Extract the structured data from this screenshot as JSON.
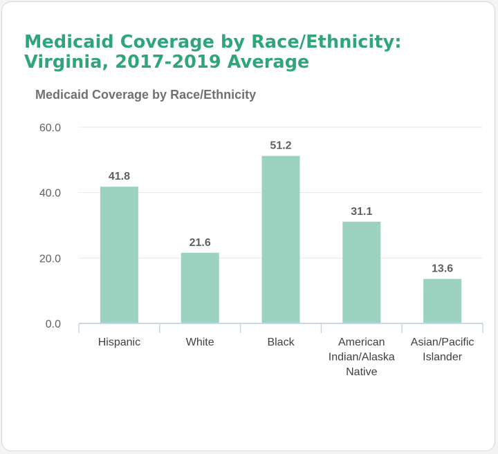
{
  "chart_data": {
    "type": "bar",
    "title": [
      "Medicaid Coverage by Race/Ethnicity:",
      "Virginia, 2017-2019 Average"
    ],
    "subtitle": "Medicaid Coverage by Race/Ethnicity",
    "categories": [
      [
        "Hispanic"
      ],
      [
        "White"
      ],
      [
        "Black"
      ],
      [
        "American",
        "Indian/Alaska",
        "Native"
      ],
      [
        "Asian/Pacific",
        "Islander"
      ]
    ],
    "values": [
      41.8,
      21.6,
      51.2,
      31.1,
      13.6
    ],
    "value_labels": [
      "41.8",
      "21.6",
      "51.2",
      "31.1",
      "13.6"
    ],
    "ylim": [
      0,
      60
    ],
    "yticks": [
      0,
      20,
      40,
      60
    ],
    "ytick_labels": [
      "0.0",
      "20.0",
      "40.0",
      "60.0"
    ],
    "xlabel": "",
    "ylabel": "",
    "grid": true,
    "bar_color": "#9bd3c0",
    "title_color": "#2fa57a"
  }
}
